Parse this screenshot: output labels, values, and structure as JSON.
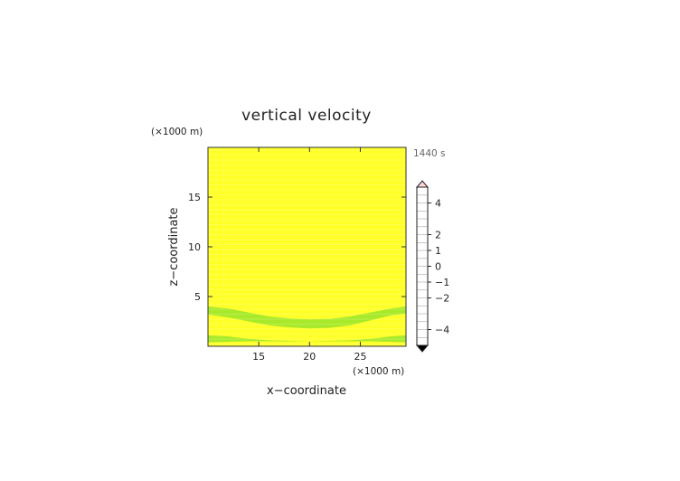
{
  "chart_data": {
    "type": "heatmap",
    "title": "vertical velocity",
    "xlabel": "x−coordinate",
    "ylabel": "z−coordinate",
    "x_unit": "(×1000 m)",
    "y_unit": "(×1000 m)",
    "time_label": "1440 s",
    "xlim": [
      10,
      29.5
    ],
    "ylim": [
      0,
      20
    ],
    "xticks": [
      15,
      20,
      25
    ],
    "yticks": [
      5,
      10,
      15
    ],
    "field": {
      "background_level": "0 to 0.5",
      "bands": [
        {
          "level": "-0.5 to 0",
          "description": "upper sagging band",
          "x": [
            10,
            12,
            14,
            16,
            18,
            20,
            22,
            24,
            26,
            28,
            29.5
          ],
          "z_low": [
            3.2,
            2.9,
            2.5,
            2.1,
            1.9,
            1.8,
            1.85,
            2.1,
            2.6,
            3.1,
            3.3
          ],
          "z_high": [
            4.0,
            3.8,
            3.4,
            3.0,
            2.8,
            2.7,
            2.75,
            3.0,
            3.4,
            3.8,
            4.0
          ]
        },
        {
          "level": "-0.5 to 0",
          "description": "lower band",
          "x": [
            10,
            12,
            14,
            16,
            18,
            20,
            22,
            24,
            26,
            28,
            29.5
          ],
          "z_low": [
            0.4,
            0.45,
            0.5,
            0.5,
            0.5,
            0.5,
            0.5,
            0.5,
            0.5,
            0.45,
            0.4
          ],
          "z_high": [
            1.1,
            1.0,
            0.75,
            0.6,
            0.55,
            0.5,
            0.55,
            0.6,
            0.75,
            1.0,
            1.1
          ]
        }
      ]
    },
    "colorbar": {
      "labels": [
        {
          "value": 4,
          "text": "4"
        },
        {
          "value": 2,
          "text": "2"
        },
        {
          "value": 1,
          "text": "1"
        },
        {
          "value": 0,
          "text": "0"
        },
        {
          "value": -1,
          "text": "−1"
        },
        {
          "value": -2,
          "text": "−2"
        },
        {
          "value": -4,
          "text": "−4"
        }
      ],
      "segments": [
        {
          "from": 4.5,
          "to": 5,
          "color": "#ffbcbc"
        },
        {
          "from": 4,
          "to": 4.5,
          "color": "#ff9a9a"
        },
        {
          "from": 3.5,
          "to": 4,
          "color": "#ff7a7a"
        },
        {
          "from": 3,
          "to": 3.5,
          "color": "#ff4040"
        },
        {
          "from": 2.5,
          "to": 3,
          "color": "#ff1a1a"
        },
        {
          "from": 2,
          "to": 2.5,
          "color": "#ff3030"
        },
        {
          "from": 1.5,
          "to": 2,
          "color": "#f47a1a"
        },
        {
          "from": 1,
          "to": 1.5,
          "color": "#f59d22"
        },
        {
          "from": 0.5,
          "to": 1,
          "color": "#f7c52a"
        },
        {
          "from": 0,
          "to": 0.5,
          "color": "#ffff2a"
        },
        {
          "from": -0.5,
          "to": 0,
          "color": "#a8ea2a"
        },
        {
          "from": -1,
          "to": -0.5,
          "color": "#20d4c8"
        },
        {
          "from": -1.5,
          "to": -1,
          "color": "#1aa6f0"
        },
        {
          "from": -2,
          "to": -1.5,
          "color": "#1f6ff0"
        },
        {
          "from": -2.5,
          "to": -2,
          "color": "#1a42f4"
        },
        {
          "from": -3,
          "to": -2.5,
          "color": "#1818e8"
        },
        {
          "from": -3.5,
          "to": -3,
          "color": "#1010c4"
        },
        {
          "from": -4,
          "to": -3.5,
          "color": "#0c0ca0"
        },
        {
          "from": -4.5,
          "to": -4,
          "color": "#080878"
        },
        {
          "from": -5,
          "to": -4.5,
          "color": "#060650"
        }
      ],
      "range": [
        -5,
        5
      ]
    },
    "colors": {
      "positive_small": "#ffff2a",
      "negative_small": "#a8ea2a",
      "frame": "#333333"
    },
    "grid": false
  }
}
